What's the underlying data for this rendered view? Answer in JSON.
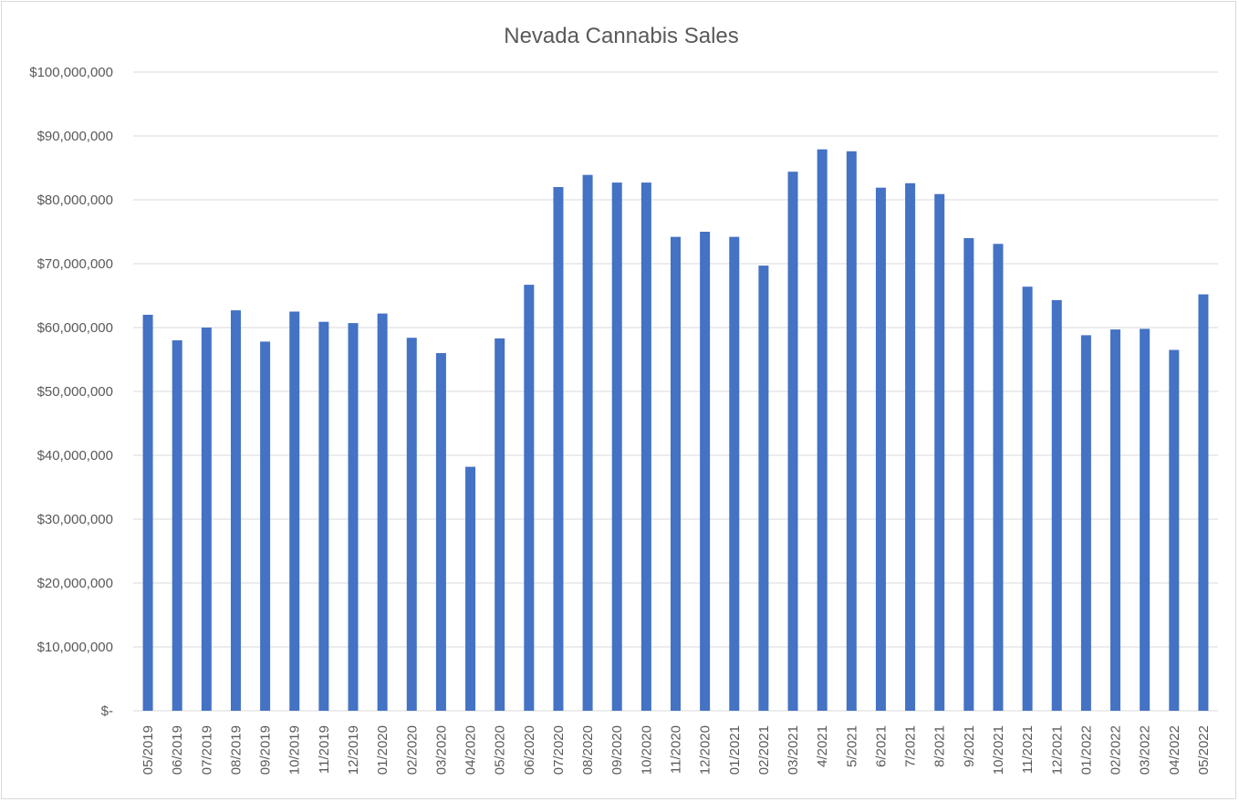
{
  "chart_data": {
    "type": "bar",
    "title": "Nevada Cannabis Sales",
    "xlabel": "",
    "ylabel": "",
    "ylim": [
      0,
      100000000
    ],
    "grid": true,
    "bar_color": "#4472c4",
    "y_ticks": [
      {
        "value": 0,
        "label": "$-"
      },
      {
        "value": 10000000,
        "label": "$10,000,000"
      },
      {
        "value": 20000000,
        "label": "$20,000,000"
      },
      {
        "value": 30000000,
        "label": "$30,000,000"
      },
      {
        "value": 40000000,
        "label": "$40,000,000"
      },
      {
        "value": 50000000,
        "label": "$50,000,000"
      },
      {
        "value": 60000000,
        "label": "$60,000,000"
      },
      {
        "value": 70000000,
        "label": "$70,000,000"
      },
      {
        "value": 80000000,
        "label": "$80,000,000"
      },
      {
        "value": 90000000,
        "label": "$90,000,000"
      },
      {
        "value": 100000000,
        "label": "$100,000,000"
      }
    ],
    "categories": [
      "05/2019",
      "06/2019",
      "07/2019",
      "08/2019",
      "09/2019",
      "10/2019",
      "11/2019",
      "12/2019",
      "01/2020",
      "02/2020",
      "03/2020",
      "04/2020",
      "05/2020",
      "06/2020",
      "07/2020",
      "08/2020",
      "09/2020",
      "10/2020",
      "11/2020",
      "12/2020",
      "01/2021",
      "02/2021",
      "03/2021",
      "4/2021",
      "5/2021",
      "6/2021",
      "7/2021",
      "8/2021",
      "9/2021",
      "10/2021",
      "11/2021",
      "12/2021",
      "01/2022",
      "02/2022",
      "03/2022",
      "04/2022",
      "05/2022"
    ],
    "values": [
      62000000,
      58000000,
      60000000,
      62700000,
      57800000,
      62500000,
      60900000,
      60700000,
      62200000,
      58400000,
      56000000,
      38200000,
      58300000,
      66700000,
      82000000,
      83900000,
      82700000,
      82700000,
      74200000,
      75000000,
      74200000,
      69700000,
      84400000,
      87900000,
      87600000,
      81900000,
      82600000,
      80900000,
      74000000,
      73100000,
      66400000,
      64300000,
      58800000,
      59700000,
      59800000,
      56500000,
      65200000
    ]
  }
}
